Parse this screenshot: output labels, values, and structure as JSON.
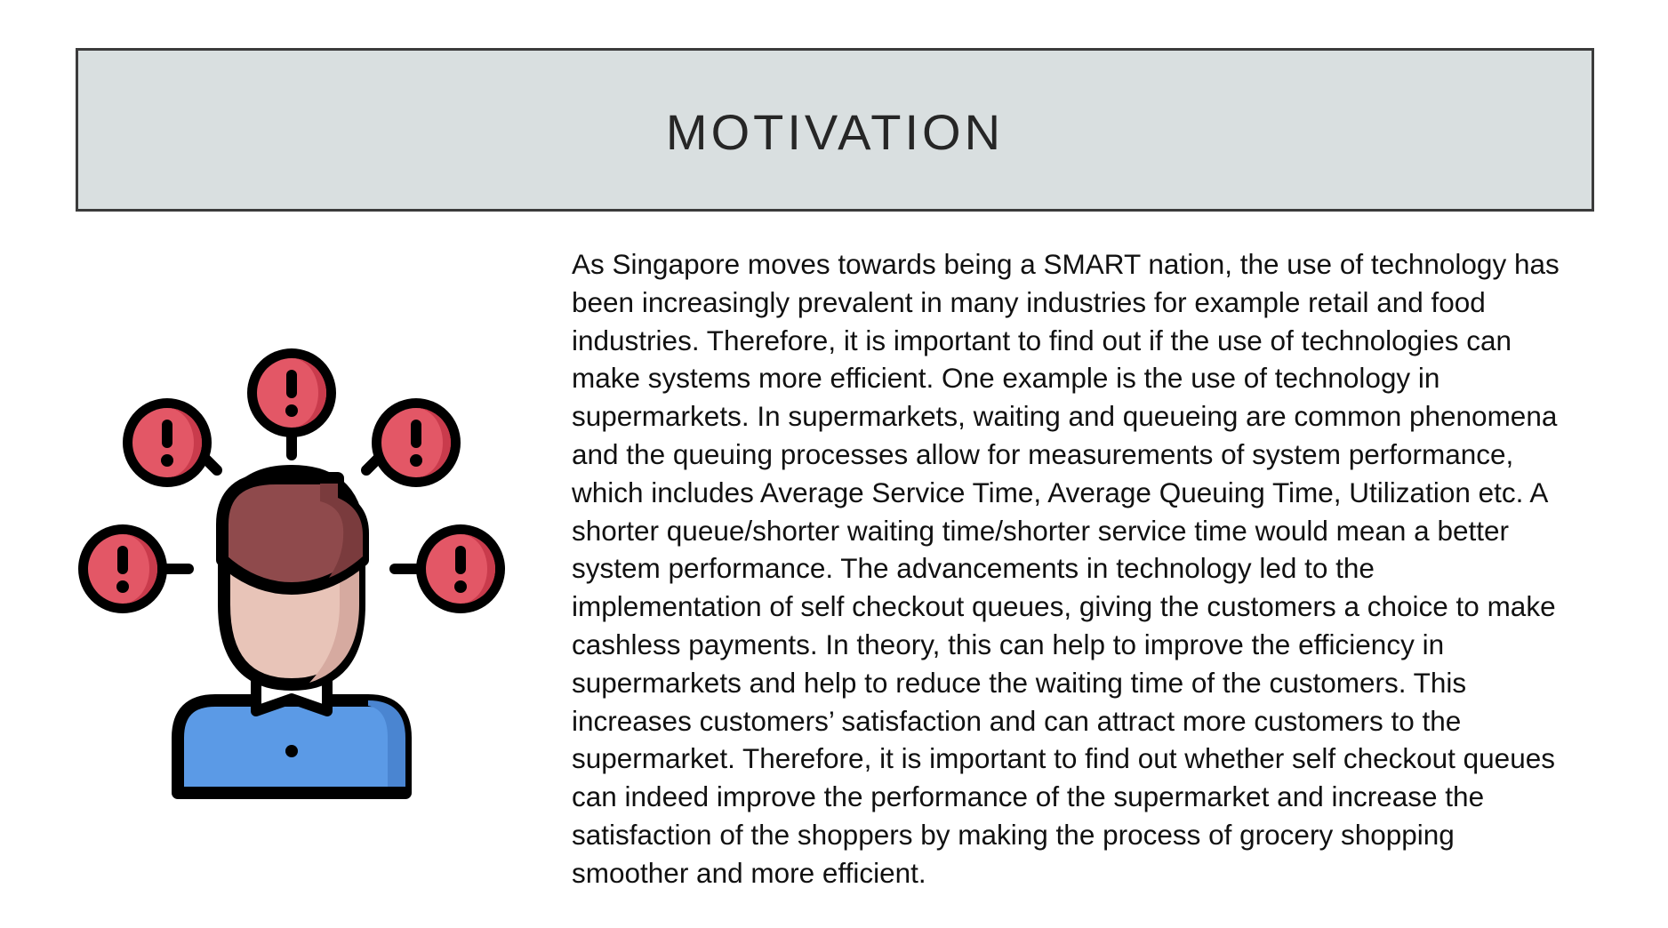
{
  "slide": {
    "title": "MOTIVATION",
    "body": "As Singapore moves towards being a SMART nation, the use of technology has been increasingly prevalent in many industries for example retail and food industries. Therefore, it is important to find out if the use of technologies can make systems more efficient. One example is the use of technology in supermarkets. In supermarkets, waiting and queueing are common phenomena and the queuing processes allow for measurements of system performance, which includes Average Service Time, Average Queuing Time, Utilization etc. A shorter queue/shorter waiting time/shorter service time would mean a better system performance. The advancements in technology led to the implementation of self checkout queues, giving the customers a choice to make cashless payments. In theory, this can help to improve the efficiency in supermarkets and help to reduce the waiting time of the customers.  This increases customers’ satisfaction and can attract more customers to the supermarket. Therefore, it is important to find out whether self checkout queues can indeed improve the performance of the supermarket and increase the satisfaction of the shoppers by making the process of grocery shopping smoother and more efficient."
  },
  "illustration": {
    "icon": "worried-person-with-alerts-icon",
    "colors": {
      "alert": "#e35766",
      "alert_shade": "#c93b4c",
      "hair": "#8f4a4c",
      "hair_shade": "#7a3b3d",
      "skin": "#e8c4b8",
      "skin_shade": "#d6aaa0",
      "shirt": "#5b9ae6",
      "shirt_shade": "#4a85d1",
      "outline": "#000000"
    }
  }
}
